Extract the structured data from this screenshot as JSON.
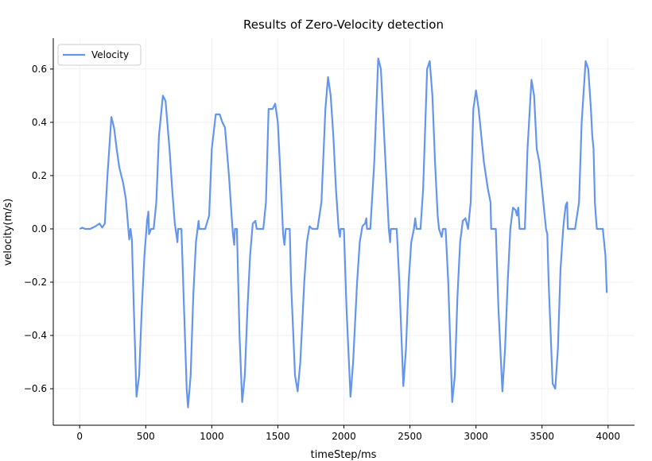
{
  "chart_data": {
    "type": "line",
    "title": "Results of Zero-Velocity detection",
    "x_label": "timeStep/ms",
    "y_label": "velocity(m/s)",
    "x": [
      0,
      20,
      40,
      80,
      120,
      150,
      170,
      190,
      210,
      240,
      260,
      280,
      300,
      330,
      350,
      360,
      375,
      385,
      395,
      410,
      430,
      450,
      470,
      490,
      510,
      520,
      525,
      540,
      560,
      580,
      600,
      630,
      650,
      680,
      700,
      720,
      740,
      745,
      770,
      790,
      810,
      820,
      840,
      860,
      880,
      900,
      905,
      950,
      980,
      1000,
      1030,
      1060,
      1080,
      1100,
      1130,
      1150,
      1160,
      1170,
      1175,
      1190,
      1210,
      1230,
      1250,
      1270,
      1290,
      1310,
      1330,
      1340,
      1390,
      1410,
      1430,
      1460,
      1480,
      1500,
      1520,
      1540,
      1550,
      1560,
      1590,
      1600,
      1630,
      1650,
      1670,
      1700,
      1720,
      1740,
      1760,
      1800,
      1830,
      1860,
      1880,
      1900,
      1920,
      1940,
      1960,
      1970,
      1975,
      2000,
      2020,
      2050,
      2070,
      2100,
      2120,
      2140,
      2160,
      2170,
      2175,
      2200,
      2230,
      2260,
      2280,
      2300,
      2320,
      2340,
      2350,
      2355,
      2400,
      2420,
      2450,
      2470,
      2490,
      2510,
      2530,
      2540,
      2550,
      2580,
      2600,
      2630,
      2650,
      2670,
      2690,
      2710,
      2720,
      2740,
      2750,
      2770,
      2790,
      2820,
      2840,
      2860,
      2880,
      2900,
      2920,
      2940,
      2960,
      2980,
      3000,
      3020,
      3040,
      3060,
      3090,
      3110,
      3115,
      3150,
      3170,
      3200,
      3220,
      3240,
      3260,
      3280,
      3300,
      3310,
      3320,
      3330,
      3370,
      3390,
      3420,
      3440,
      3460,
      3480,
      3500,
      3520,
      3530,
      3540,
      3550,
      3580,
      3600,
      3620,
      3640,
      3660,
      3670,
      3680,
      3690,
      3695,
      3750,
      3780,
      3800,
      3830,
      3850,
      3870,
      3880,
      3890,
      3900,
      3910,
      3915,
      3950,
      3960,
      3980,
      3990
    ],
    "series": [
      {
        "name": "Velocity",
        "color": "#6495ed",
        "values": [
          0,
          0.005,
          0,
          0,
          0.01,
          0.02,
          0.005,
          0.02,
          0.2,
          0.42,
          0.38,
          0.3,
          0.23,
          0.17,
          0.11,
          0.05,
          -0.04,
          0,
          -0.04,
          -0.3,
          -0.63,
          -0.55,
          -0.3,
          -0.1,
          0.03,
          0.065,
          -0.02,
          0,
          0,
          0.1,
          0.35,
          0.5,
          0.48,
          0.3,
          0.15,
          0.02,
          -0.05,
          0,
          0,
          -0.3,
          -0.6,
          -0.67,
          -0.55,
          -0.25,
          -0.05,
          0.03,
          0,
          0,
          0.05,
          0.3,
          0.43,
          0.43,
          0.4,
          0.38,
          0.2,
          0.05,
          -0.02,
          -0.06,
          0,
          0,
          -0.4,
          -0.65,
          -0.55,
          -0.3,
          -0.1,
          0.02,
          0.03,
          0,
          0,
          0.1,
          0.45,
          0.45,
          0.47,
          0.4,
          0.2,
          -0.02,
          -0.06,
          0,
          0,
          -0.2,
          -0.55,
          -0.61,
          -0.5,
          -0.2,
          -0.05,
          0.01,
          0,
          0,
          0.1,
          0.45,
          0.57,
          0.5,
          0.35,
          0.15,
          0,
          -0.03,
          0,
          0,
          -0.3,
          -0.63,
          -0.5,
          -0.2,
          -0.05,
          0.01,
          0.02,
          0.04,
          0,
          0,
          0.25,
          0.64,
          0.6,
          0.4,
          0.2,
          0,
          -0.05,
          0,
          0,
          -0.2,
          -0.59,
          -0.45,
          -0.2,
          -0.05,
          0,
          0.04,
          0,
          0,
          0.15,
          0.6,
          0.63,
          0.5,
          0.25,
          0.05,
          0,
          -0.03,
          0,
          0,
          -0.2,
          -0.65,
          -0.55,
          -0.25,
          -0.05,
          0.03,
          0.04,
          0,
          0.1,
          0.45,
          0.52,
          0.45,
          0.35,
          0.25,
          0.15,
          0.1,
          0,
          0,
          -0.3,
          -0.61,
          -0.45,
          -0.2,
          0,
          0.08,
          0.07,
          0.05,
          0.08,
          0,
          0,
          0.3,
          0.56,
          0.5,
          0.3,
          0.25,
          0.15,
          0.05,
          0,
          -0.02,
          -0.2,
          -0.58,
          -0.6,
          -0.45,
          -0.15,
          0,
          0.05,
          0.09,
          0.1,
          0,
          0,
          0.1,
          0.4,
          0.63,
          0.6,
          0.45,
          0.35,
          0.3,
          0.1,
          0.03,
          0,
          0,
          0,
          -0.1,
          -0.24
        ]
      }
    ],
    "xlim": [
      -200,
      4200
    ],
    "ylim": [
      -0.737,
      0.716
    ],
    "xticks": [
      0,
      500,
      1000,
      1500,
      2000,
      2500,
      3000,
      3500,
      4000
    ],
    "yticks": [
      {
        "value": -0.6,
        "label": "−0.6"
      },
      {
        "value": -0.4,
        "label": "−0.4"
      },
      {
        "value": -0.2,
        "label": "−0.2"
      },
      {
        "value": 0,
        "label": "0.0"
      },
      {
        "value": 0.2,
        "label": "0.2"
      },
      {
        "value": 0.4,
        "label": "0.4"
      },
      {
        "value": 0.6,
        "label": "0.6"
      }
    ],
    "grid": true,
    "legend": "upper left"
  }
}
